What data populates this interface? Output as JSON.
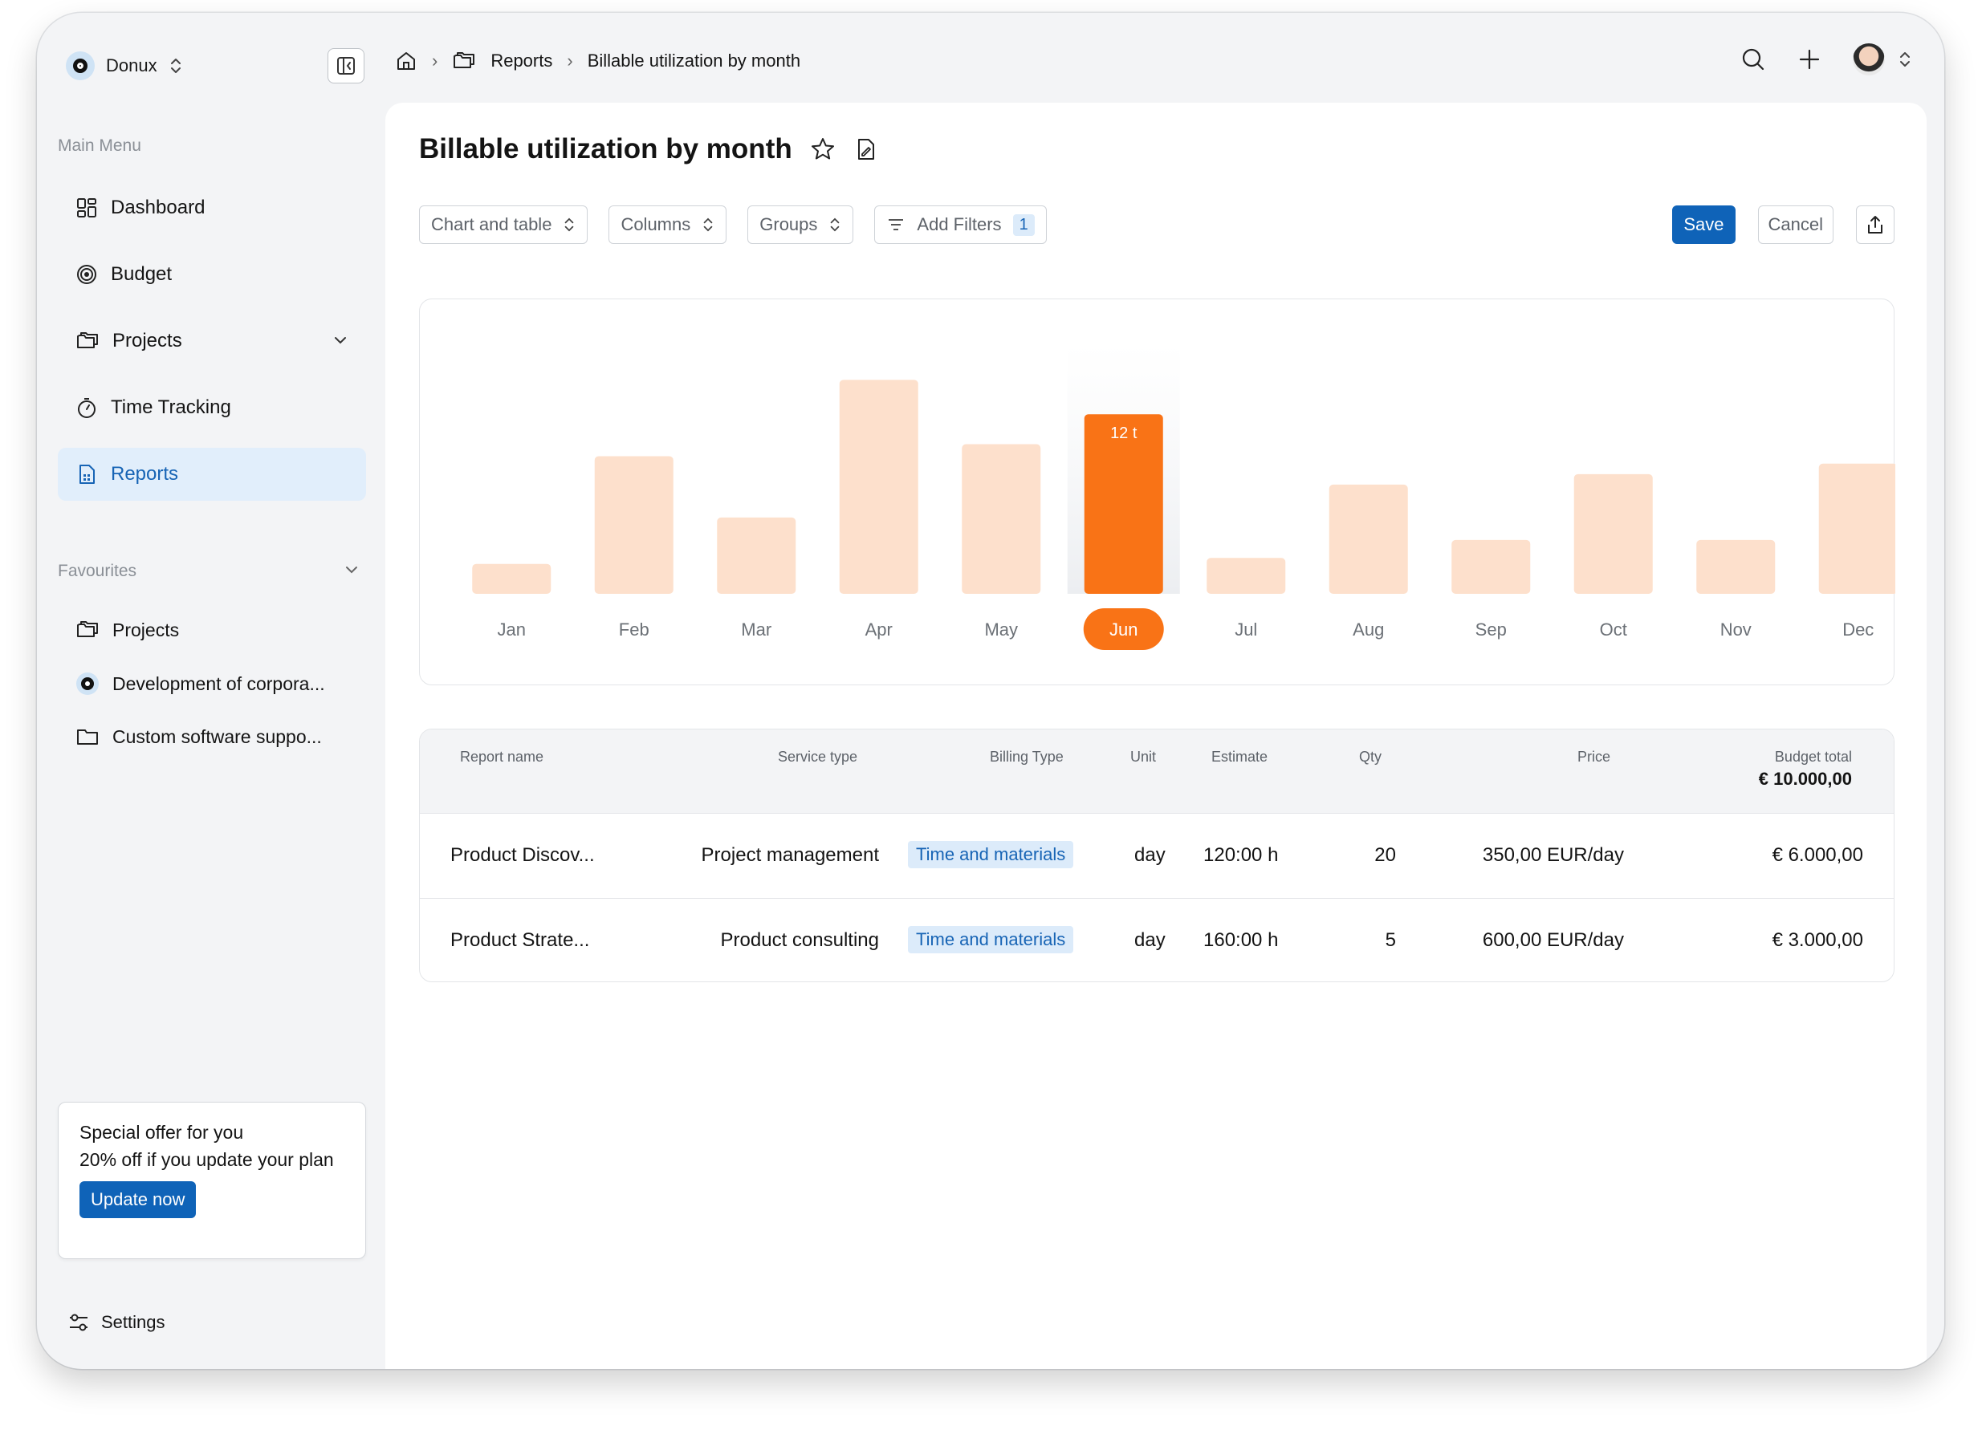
{
  "org": {
    "name": "Donux"
  },
  "sidebar": {
    "main_menu_label": "Main Menu",
    "items": [
      {
        "label": "Dashboard",
        "icon": "grid-icon"
      },
      {
        "label": "Budget",
        "icon": "target-icon"
      },
      {
        "label": "Projects",
        "icon": "folders-icon"
      },
      {
        "label": "Time Tracking",
        "icon": "stopwatch-icon"
      },
      {
        "label": "Reports",
        "icon": "report-icon"
      }
    ],
    "favourites_label": "Favourites",
    "favourites": [
      {
        "label": "Projects"
      },
      {
        "label": "Development of corpora..."
      },
      {
        "label": "Custom software suppo..."
      }
    ],
    "offer": {
      "title": "Special offer for you",
      "text": "20% off if you update your plan",
      "button": "Update now"
    },
    "settings_label": "Settings"
  },
  "breadcrumb": {
    "reports": "Reports",
    "current": "Billable utilization by month"
  },
  "page": {
    "title": "Billable utilization by month"
  },
  "toolbar": {
    "view": "Chart and table",
    "columns": "Columns",
    "groups": "Groups",
    "filters": "Add Filters",
    "filters_count": "1",
    "save": "Save",
    "cancel": "Cancel"
  },
  "colors": {
    "accent": "#0f63b8",
    "bar": "#fde0cc",
    "bar_active": "#f97316"
  },
  "chart_data": {
    "type": "bar",
    "categories": [
      "Jan",
      "Feb",
      "Mar",
      "Apr",
      "May",
      "Jun",
      "Jul",
      "Aug",
      "Sep",
      "Oct",
      "Nov",
      "Dec"
    ],
    "values": [
      2,
      9.2,
      5.1,
      14.3,
      10,
      12,
      2.4,
      7.3,
      3.6,
      8,
      3.6,
      8.7
    ],
    "ylim": [
      0,
      17
    ],
    "selected": "Jun",
    "selected_label": "12 t"
  },
  "table": {
    "headers": {
      "report_name": "Report name",
      "service_type": "Service type",
      "billing_type": "Billing Type",
      "unit": "Unit",
      "estimate": "Estimate",
      "qty": "Qty",
      "price": "Price",
      "budget_total": "Budget total",
      "budget_total_value": "€ 10.000,00"
    },
    "rows": [
      {
        "name": "Product Discov...",
        "service": "Project management",
        "billing": "Time and materials",
        "unit": "day",
        "estimate": "120:00 h",
        "qty": "20",
        "price": "350,00 EUR/day",
        "total": "€ 6.000,00"
      },
      {
        "name": "Product Strate...",
        "service": "Product consulting",
        "billing": "Time and materials",
        "unit": "day",
        "estimate": "160:00 h",
        "qty": "5",
        "price": "600,00 EUR/day",
        "total": "€ 3.000,00"
      }
    ]
  }
}
